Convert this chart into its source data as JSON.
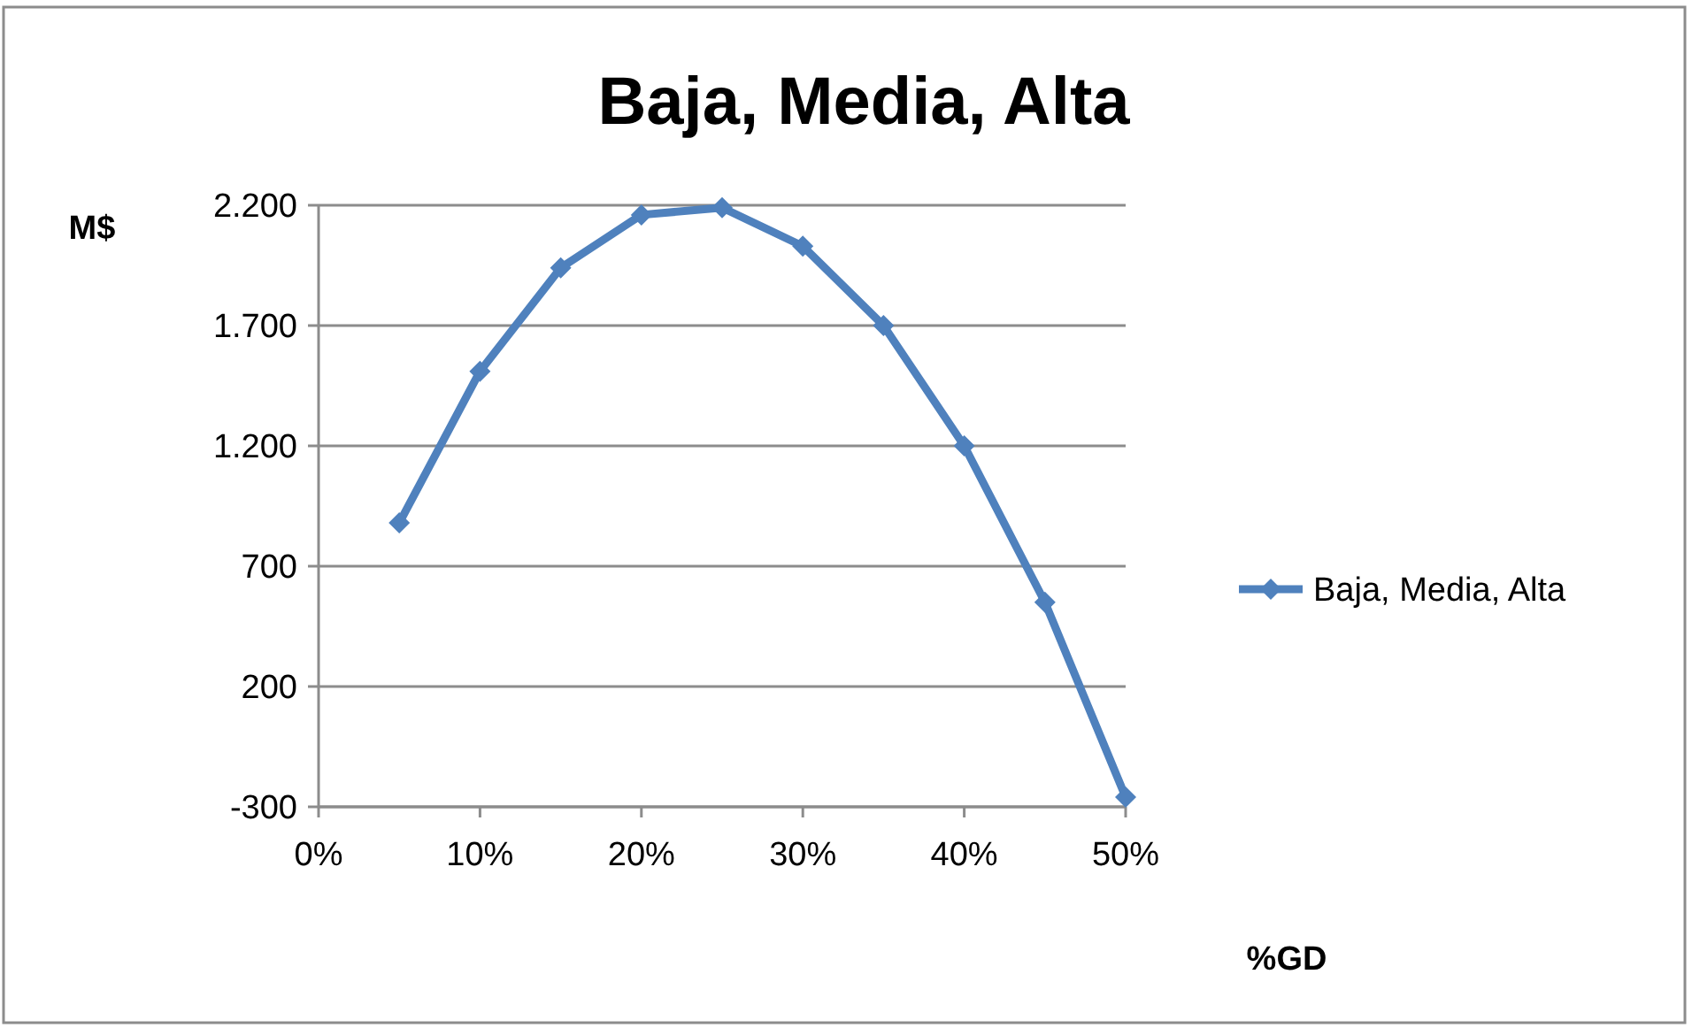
{
  "chart_data": {
    "type": "line",
    "title": "Baja, Media, Alta",
    "xlabel": "%GD",
    "ylabel": "M$",
    "x": [
      5,
      10,
      15,
      20,
      25,
      30,
      35,
      40,
      45,
      50
    ],
    "series": [
      {
        "name": "Baja, Media, Alta",
        "color": "#4f81bd",
        "values": [
          880,
          1510,
          1940,
          2160,
          2190,
          2030,
          1700,
          1200,
          550,
          -260
        ]
      }
    ],
    "xlim": [
      0,
      50
    ],
    "xticks": [
      {
        "value": 0,
        "label": "0%"
      },
      {
        "value": 10,
        "label": "10%"
      },
      {
        "value": 20,
        "label": "20%"
      },
      {
        "value": 30,
        "label": "30%"
      },
      {
        "value": 40,
        "label": "40%"
      },
      {
        "value": 50,
        "label": "50%"
      }
    ],
    "ylim": [
      -300,
      2200
    ],
    "yticks": [
      -300,
      200,
      700,
      {
        "value": 1200,
        "label": "1.200"
      },
      {
        "value": 1700,
        "label": "1.700"
      },
      {
        "value": 2200,
        "label": "2.200"
      }
    ],
    "grid": "y",
    "legend": "right",
    "marker": "diamond",
    "line_style": "solid"
  }
}
